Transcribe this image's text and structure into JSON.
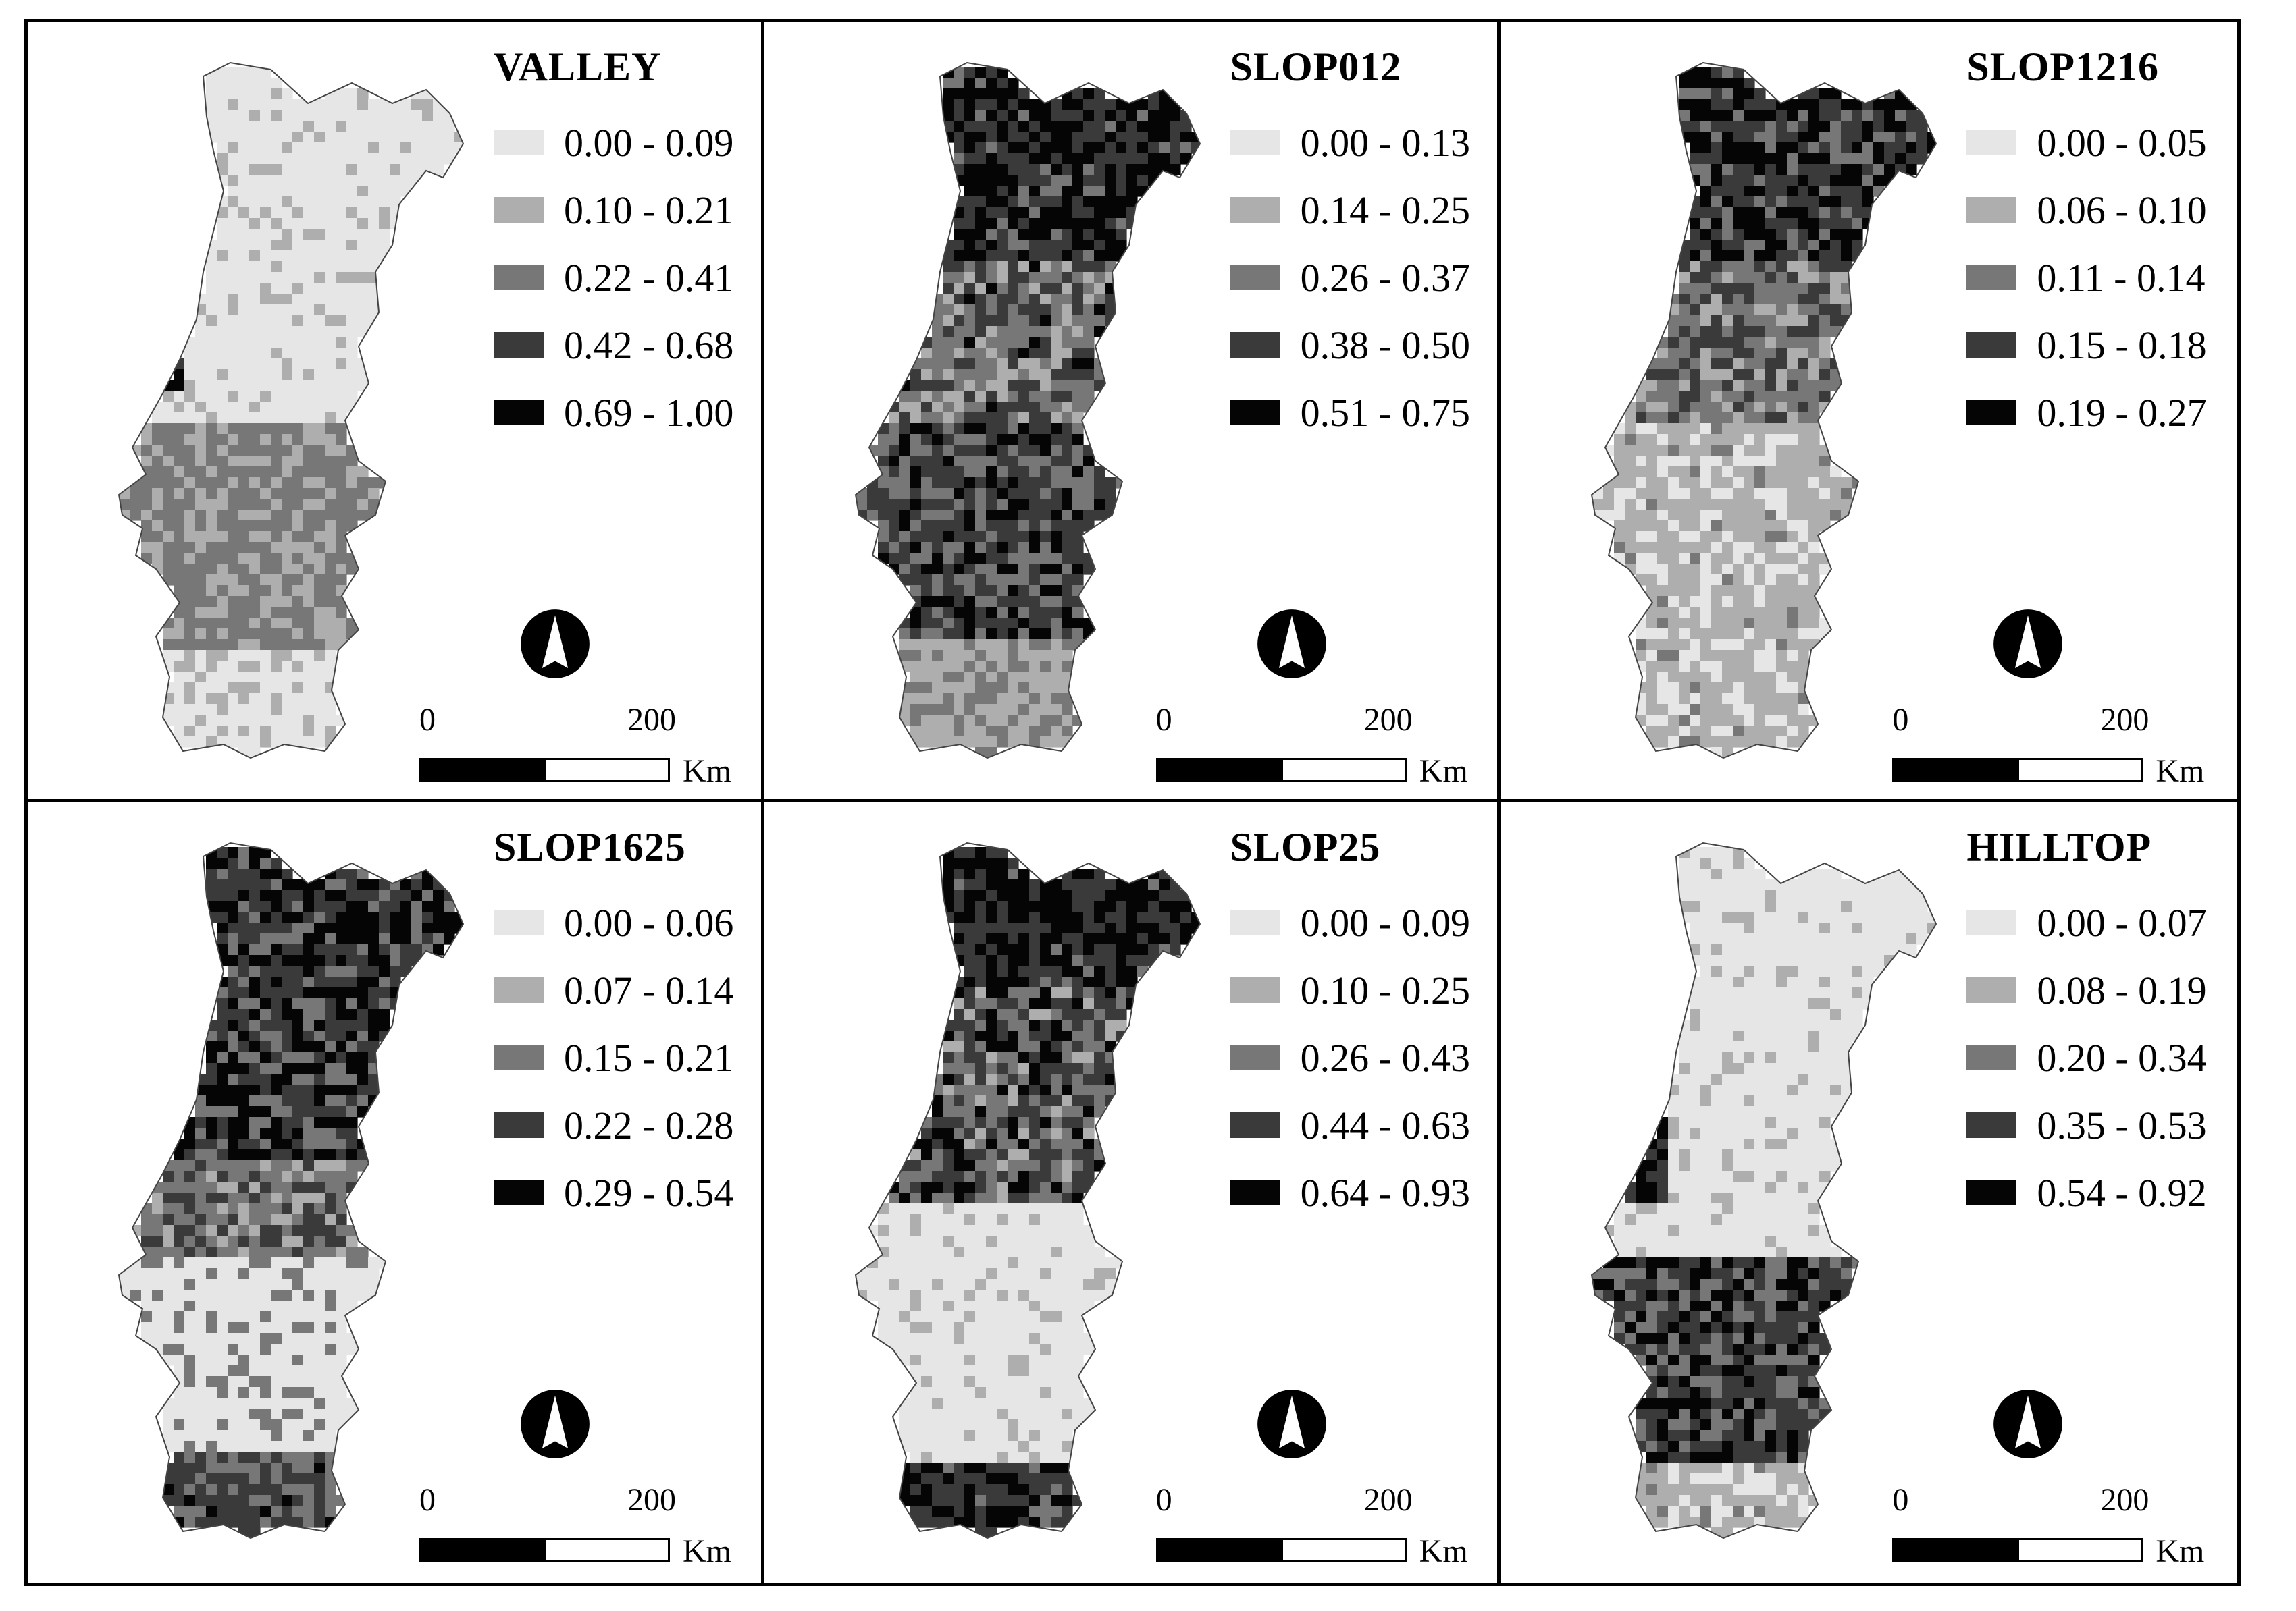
{
  "colors": {
    "class_fills": [
      "#e6e6e6",
      "#aeaeae",
      "#777777",
      "#3a3a3a",
      "#050505"
    ],
    "frame": "#000000",
    "background": "#ffffff"
  },
  "scale": {
    "start": "0",
    "end": "200",
    "unit": "Km"
  },
  "panels": [
    {
      "title": "VALLEY",
      "legend": [
        "0.00 - 0.09",
        "0.10 - 0.21",
        "0.22 - 0.41",
        "0.42 - 0.68",
        "0.69 - 1.00"
      ],
      "north_icon": "north-arrow-icon",
      "scale": {
        "start": "0",
        "end": "200",
        "unit": "Km"
      }
    },
    {
      "title": "SLOP012",
      "legend": [
        "0.00 - 0.13",
        "0.14 - 0.25",
        "0.26 - 0.37",
        "0.38 - 0.50",
        "0.51 - 0.75"
      ],
      "north_icon": "north-arrow-icon",
      "scale": {
        "start": "0",
        "end": "200",
        "unit": "Km"
      }
    },
    {
      "title": "SLOP1216",
      "legend": [
        "0.00 - 0.05",
        "0.06 - 0.10",
        "0.11 - 0.14",
        "0.15 - 0.18",
        "0.19 - 0.27"
      ],
      "north_icon": "north-arrow-icon",
      "scale": {
        "start": "0",
        "end": "200",
        "unit": "Km"
      }
    },
    {
      "title": "SLOP1625",
      "legend": [
        "0.00 - 0.06",
        "0.07 - 0.14",
        "0.15 - 0.21",
        "0.22 - 0.28",
        "0.29 - 0.54"
      ],
      "north_icon": "north-arrow-icon",
      "scale": {
        "start": "0",
        "end": "200",
        "unit": "Km"
      }
    },
    {
      "title": "SLOP25",
      "legend": [
        "0.00 - 0.09",
        "0.10 - 0.25",
        "0.26 - 0.43",
        "0.44 - 0.63",
        "0.64 - 0.93"
      ],
      "north_icon": "north-arrow-icon",
      "scale": {
        "start": "0",
        "end": "200",
        "unit": "Km"
      }
    },
    {
      "title": "HILLTOP",
      "legend": [
        "0.00 - 0.07",
        "0.08 - 0.19",
        "0.20 - 0.34",
        "0.35 - 0.53",
        "0.54 - 0.92"
      ],
      "north_icon": "north-arrow-icon",
      "scale": {
        "start": "0",
        "end": "200",
        "unit": "Km"
      }
    }
  ],
  "map_patterns": {
    "VALLEY": [
      {
        "region": "north",
        "classes": [
          0,
          1
        ]
      },
      {
        "region": "north-west-coast",
        "classes": [
          2,
          3
        ]
      },
      {
        "region": "centre-west",
        "classes": [
          1,
          2,
          3
        ]
      },
      {
        "region": "alentejo",
        "classes": [
          1,
          2
        ]
      },
      {
        "region": "algarve",
        "classes": [
          0,
          1
        ]
      }
    ],
    "SLOP012": [
      {
        "region": "north",
        "classes": [
          2,
          3,
          4
        ]
      },
      {
        "region": "centre",
        "classes": [
          1,
          2,
          3
        ]
      },
      {
        "region": "alentejo",
        "classes": [
          2,
          3
        ]
      },
      {
        "region": "algarve",
        "classes": [
          1
        ]
      }
    ],
    "SLOP1216": [
      {
        "region": "north",
        "classes": [
          2,
          3,
          4
        ]
      },
      {
        "region": "centre",
        "classes": [
          1,
          2
        ]
      },
      {
        "region": "south",
        "classes": [
          0,
          1
        ]
      }
    ],
    "SLOP1625": [
      {
        "region": "north",
        "classes": [
          2,
          3,
          4
        ]
      },
      {
        "region": "centre",
        "classes": [
          1,
          2,
          3
        ]
      },
      {
        "region": "alentejo",
        "classes": [
          0,
          1
        ]
      },
      {
        "region": "algarve",
        "classes": [
          2,
          3
        ]
      }
    ],
    "SLOP25": [
      {
        "region": "north",
        "classes": [
          3,
          4
        ]
      },
      {
        "region": "centre",
        "classes": [
          2,
          3,
          4
        ]
      },
      {
        "region": "south",
        "classes": [
          0,
          1
        ]
      },
      {
        "region": "algarve",
        "classes": [
          3,
          4
        ]
      }
    ],
    "HILLTOP": [
      {
        "region": "north",
        "classes": [
          0,
          1
        ]
      },
      {
        "region": "coast",
        "classes": [
          3,
          4
        ]
      },
      {
        "region": "alentejo",
        "classes": [
          2,
          3,
          4
        ]
      },
      {
        "region": "algarve",
        "classes": [
          0,
          1
        ]
      }
    ]
  }
}
